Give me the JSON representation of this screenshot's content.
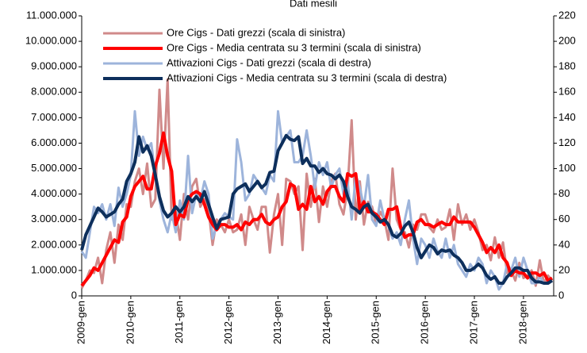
{
  "chart_data": {
    "type": "line",
    "title": "Dati mesili",
    "categories": [
      "2009-gen",
      null,
      null,
      null,
      null,
      null,
      null,
      null,
      null,
      null,
      null,
      null,
      "2010-gen",
      null,
      null,
      null,
      null,
      null,
      null,
      null,
      null,
      null,
      null,
      null,
      "2011-gen",
      null,
      null,
      null,
      null,
      null,
      null,
      null,
      null,
      null,
      null,
      null,
      "2012-gen",
      null,
      null,
      null,
      null,
      null,
      null,
      null,
      null,
      null,
      null,
      null,
      "2013-gen",
      null,
      null,
      null,
      null,
      null,
      null,
      null,
      null,
      null,
      null,
      null,
      "2014-gen",
      null,
      null,
      null,
      null,
      null,
      null,
      null,
      null,
      null,
      null,
      null,
      "2015-gen",
      null,
      null,
      null,
      null,
      null,
      null,
      null,
      null,
      null,
      null,
      null,
      "2016-gen",
      null,
      null,
      null,
      null,
      null,
      null,
      null,
      null,
      null,
      null,
      null,
      "2017-gen",
      null,
      null,
      null,
      null,
      null,
      null,
      null,
      null,
      null,
      null,
      null,
      "2018-gen",
      null,
      null,
      null,
      null,
      null,
      null,
      null
    ],
    "ylim": [
      0,
      11000000
    ],
    "yticks": [
      0,
      {
        "value": 1000000,
        "label": "1.000.000"
      },
      {
        "value": 2000000,
        "label": "2.000.000"
      },
      {
        "value": 3000000,
        "label": "3.000.000"
      },
      {
        "value": 4000000,
        "label": "4.000.000"
      },
      {
        "value": 5000000,
        "label": "5.000.000"
      },
      {
        "value": 6000000,
        "label": "6.000.000"
      },
      {
        "value": 7000000,
        "label": "7.000.000"
      },
      {
        "value": 8000000,
        "label": "8.000.000"
      },
      {
        "value": 9000000,
        "label": "9.000.000"
      },
      {
        "value": 10000000,
        "label": "10.000.000"
      },
      {
        "value": 11000000,
        "label": "11.000.000"
      }
    ],
    "y2lim": [
      0,
      220
    ],
    "y2ticks": [
      0,
      20,
      40,
      60,
      80,
      100,
      120,
      140,
      160,
      180,
      200,
      220
    ],
    "series": [
      {
        "name": "Ore Cigs - Dati grezzi (scala di sinistra)",
        "color": "#d08a8a",
        "width": 3,
        "values": [
          300000,
          600000,
          1000000,
          900000,
          1500000,
          500000,
          1800000,
          2500000,
          1300000,
          2800000,
          2200000,
          3600000,
          3500000,
          4500000,
          5000000,
          4000000,
          5200000,
          3500000,
          3800000,
          8100000,
          5000000,
          8500000,
          3000000,
          3300000,
          2200000,
          4000000,
          3000000,
          4300000,
          4600000,
          3500000,
          3800000,
          3400000,
          2000000,
          3000000,
          2800000,
          2500000,
          3000000,
          2500000,
          2600000,
          3200000,
          2000000,
          3500000,
          3000000,
          2600000,
          3500000,
          3500000,
          1700000,
          3200000,
          4000000,
          2000000,
          4600000,
          4500000,
          4000000,
          4300000,
          1800000,
          4800000,
          3500000,
          4600000,
          2900000,
          4300000,
          3500000,
          4500000,
          4800000,
          3600000,
          3200000,
          4200000,
          6900000,
          3000000,
          4500000,
          2800000,
          3700000,
          3500000,
          2800000,
          3300000,
          3000000,
          2200000,
          5000000,
          3000000,
          2600000,
          2500000,
          1900000,
          2800000,
          2600000,
          3200000,
          3200000,
          2700000,
          2500000,
          3000000,
          2600000,
          2700000,
          3400000,
          2200000,
          3600000,
          2800000,
          3200000,
          2600000,
          3000000,
          2500000,
          1800000,
          2000000,
          1400000,
          2300000,
          1500000,
          2100000,
          900000,
          1000000,
          600000,
          1300000,
          700000,
          800000,
          1000000,
          400000,
          1400000,
          500000,
          800000,
          600000
        ]
      },
      {
        "name": "Ore Cigs - Media centrata su 3 termini (scala di sinistra)",
        "color": "#ff0000",
        "width": 4,
        "values": [
          400000,
          600000,
          800000,
          1100000,
          1000000,
          1300000,
          1600000,
          1900000,
          2200000,
          2100000,
          2900000,
          3100000,
          3900000,
          4300000,
          4500000,
          4700000,
          4200000,
          4200000,
          5100000,
          5600000,
          6400000,
          5500000,
          4900000,
          2800000,
          3200000,
          3100000,
          3800000,
          4000000,
          4100000,
          4000000,
          3600000,
          3100000,
          2800000,
          2600000,
          2800000,
          2800000,
          2700000,
          2700000,
          2800000,
          2600000,
          2900000,
          2800000,
          3000000,
          3000000,
          3200000,
          2900000,
          2800000,
          3000000,
          3100000,
          3500000,
          3700000,
          4400000,
          4300000,
          3400000,
          3600000,
          3400000,
          4300000,
          3700000,
          3900000,
          3600000,
          4100000,
          4300000,
          4300000,
          3900000,
          3700000,
          4800000,
          4700000,
          4800000,
          3400000,
          3700000,
          3300000,
          3300000,
          3200000,
          3000000,
          2800000,
          3400000,
          3400000,
          3500000,
          2700000,
          2300000,
          2400000,
          2400000,
          2900000,
          3000000,
          2800000,
          2800000,
          2700000,
          2800000,
          2900000,
          2800000,
          2800000,
          3100000,
          2900000,
          2900000,
          2900000,
          2900000,
          2700000,
          2400000,
          2100000,
          1700000,
          1900000,
          1700000,
          2000000,
          1500000,
          1300000,
          800000,
          1000000,
          900000,
          900000,
          700000,
          900000,
          900000,
          800000,
          900000,
          600000,
          700000
        ]
      },
      {
        "name": "Attivazioni Cigs - Dati grezzi (scala di destra)",
        "color": "#9db4db",
        "width": 3,
        "axis": "y2",
        "values": [
          35,
          30,
          50,
          70,
          65,
          72,
          60,
          72,
          55,
          85,
          70,
          80,
          95,
          145,
          110,
          125,
          115,
          120,
          95,
          75,
          60,
          50,
          65,
          50,
          75,
          60,
          110,
          65,
          80,
          75,
          90,
          80,
          45,
          55,
          60,
          65,
          62,
          60,
          123,
          105,
          75,
          80,
          95,
          90,
          85,
          80,
          95,
          90,
          145,
          120,
          125,
          130,
          105,
          105,
          110,
          130,
          110,
          85,
          105,
          95,
          105,
          85,
          95,
          100,
          80,
          90,
          60,
          95,
          85,
          70,
          95,
          60,
          55,
          75,
          60,
          55,
          45,
          50,
          40,
          60,
          75,
          45,
          25,
          45,
          40,
          30,
          45,
          35,
          30,
          45,
          30,
          40,
          25,
          20,
          15,
          25,
          20,
          30,
          25,
          10,
          20,
          15,
          5,
          10,
          25,
          20,
          30,
          15,
          30,
          20,
          10,
          10,
          15,
          10,
          10,
          12
        ]
      },
      {
        "name": "Attivazioni Cigs - Media centrata su 3 termini (scala di destra)",
        "color": "#0d2f5c",
        "width": 4,
        "axis": "y2",
        "values": [
          36,
          48,
          55,
          62,
          69,
          66,
          62,
          64,
          66,
          72,
          76,
          90,
          96,
          105,
          125,
          113,
          118,
          110,
          95,
          78,
          67,
          62,
          65,
          70,
          66,
          70,
          78,
          74,
          78,
          74,
          82,
          72,
          62,
          53,
          60,
          61,
          62,
          80,
          84,
          86,
          88,
          82,
          86,
          90,
          85,
          88,
          97,
          98,
          114,
          120,
          126,
          123,
          122,
          125,
          104,
          108,
          102,
          102,
          97,
          100,
          96,
          95,
          92,
          95,
          90,
          78,
          70,
          68,
          65,
          70,
          72,
          65,
          62,
          58,
          60,
          56,
          48,
          46,
          49,
          55,
          58,
          50,
          38,
          30,
          35,
          40,
          38,
          33,
          36,
          35,
          36,
          32,
          30,
          26,
          20,
          20,
          22,
          25,
          22,
          16,
          13,
          15,
          10,
          10,
          15,
          18,
          22,
          22,
          20,
          20,
          14,
          11,
          11,
          10,
          10,
          12
        ]
      }
    ]
  }
}
